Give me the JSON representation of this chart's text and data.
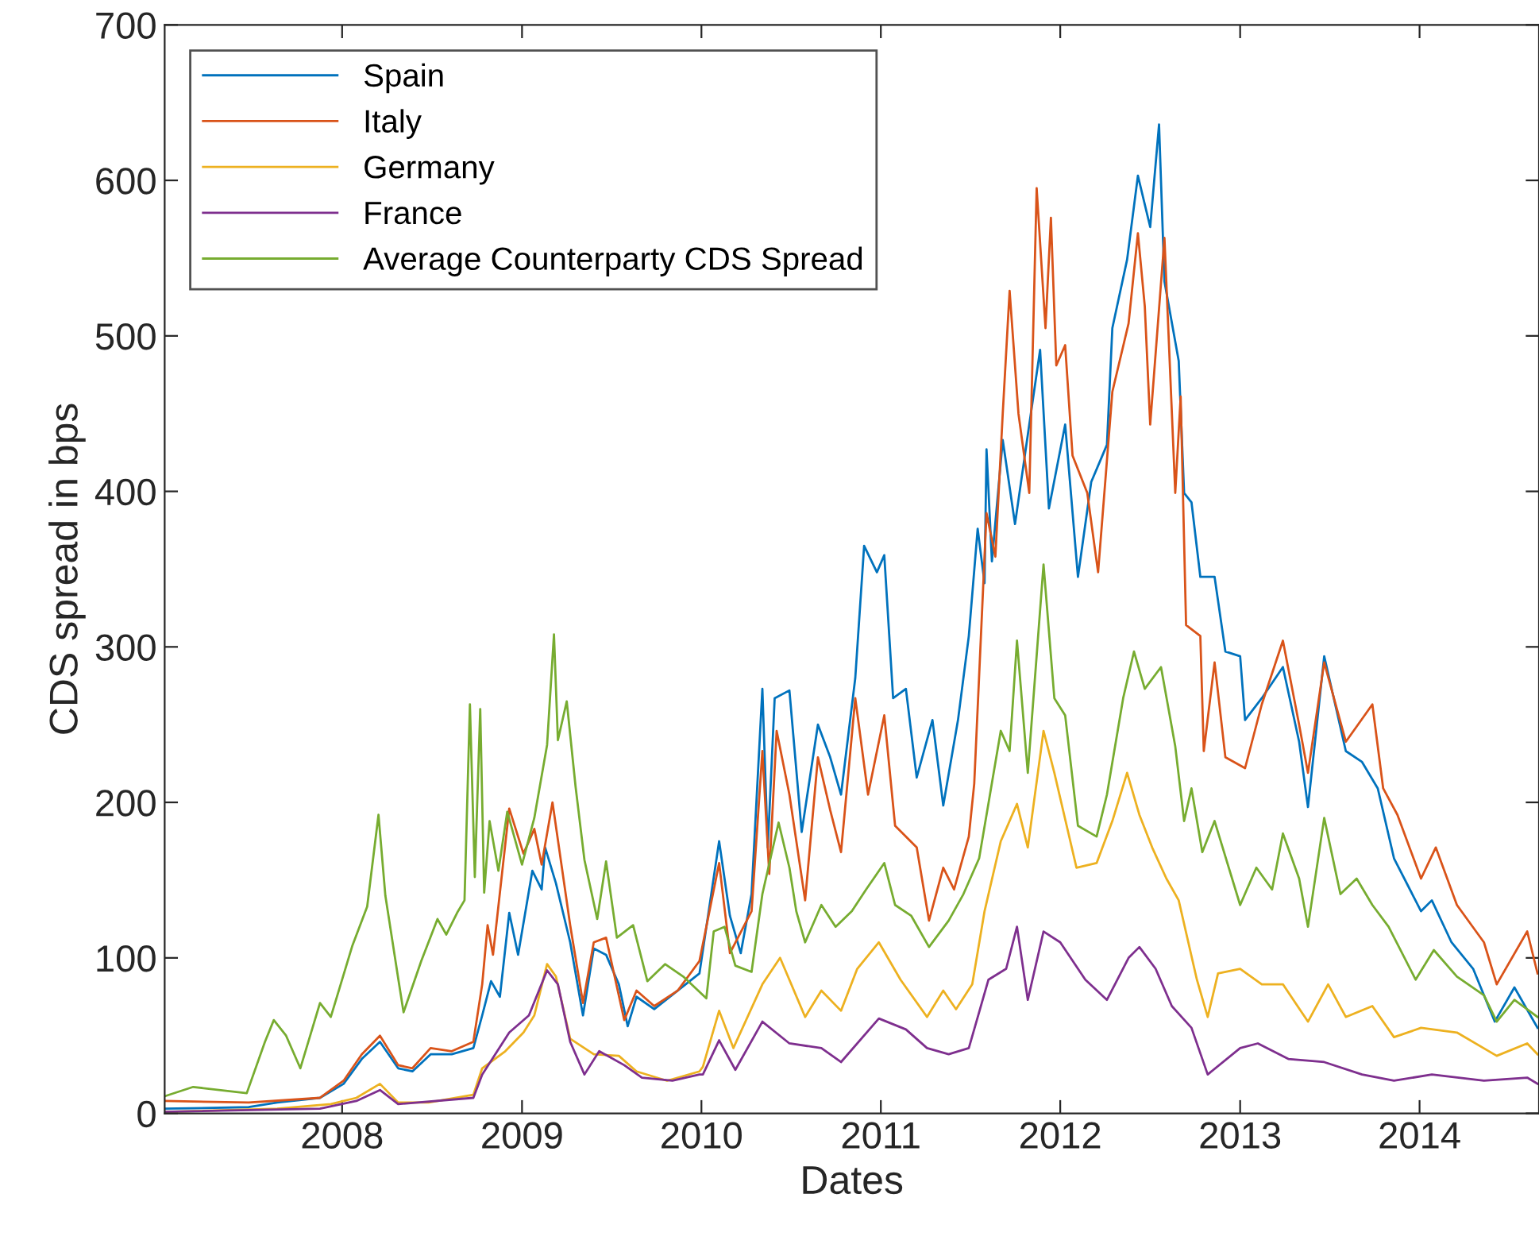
{
  "chart_data": {
    "type": "line",
    "xlabel": "Dates",
    "ylabel": "CDS spread in bps",
    "xlim": [
      "2007-01-05",
      "2014-09-01"
    ],
    "ylim": [
      0,
      700
    ],
    "yticks": [
      0,
      100,
      200,
      300,
      400,
      500,
      600,
      700
    ],
    "xticks": [
      {
        "value": "2008-01-01",
        "label": "2008"
      },
      {
        "value": "2009-01-01",
        "label": "2009"
      },
      {
        "value": "2010-01-01",
        "label": "2010"
      },
      {
        "value": "2011-01-01",
        "label": "2011"
      },
      {
        "value": "2012-01-01",
        "label": "2012"
      },
      {
        "value": "2013-01-01",
        "label": "2013"
      },
      {
        "value": "2014-01-01",
        "label": "2014"
      }
    ],
    "grid": false,
    "legend": "top left",
    "marker": "none",
    "line_style": "solid",
    "series": [
      {
        "name": "Spain",
        "color": "#0072bd",
        "x": [
          "2007-01-05",
          "2007-06-25",
          "2007-08-22",
          "2007-11-17",
          "2008-01-04",
          "2008-02-10",
          "2008-03-18",
          "2008-04-24",
          "2008-05-23",
          "2008-06-29",
          "2008-08-11",
          "2008-09-24",
          "2008-10-12",
          "2008-10-30",
          "2008-11-17",
          "2008-12-06",
          "2008-12-24",
          "2009-01-22",
          "2009-02-10",
          "2009-02-17",
          "2009-03-11",
          "2009-04-09",
          "2009-05-05",
          "2009-05-27",
          "2009-06-21",
          "2009-07-17",
          "2009-08-04",
          "2009-08-22",
          "2009-09-27",
          "2009-11-14",
          "2009-12-28",
          "2010-02-06",
          "2010-02-28",
          "2010-03-22",
          "2010-04-13",
          "2010-05-05",
          "2010-05-16",
          "2010-05-30",
          "2010-06-29",
          "2010-07-24",
          "2010-08-26",
          "2010-09-20",
          "2010-10-12",
          "2010-11-10",
          "2010-11-28",
          "2010-12-24",
          "2011-01-08",
          "2011-01-26",
          "2011-02-21",
          "2011-03-15",
          "2011-04-16",
          "2011-05-08",
          "2011-06-07",
          "2011-06-29",
          "2011-07-17",
          "2011-07-31",
          "2011-08-04",
          "2011-08-15",
          "2011-09-06",
          "2011-10-01",
          "2011-10-30",
          "2011-11-21",
          "2011-12-09",
          "2012-01-11",
          "2012-02-06",
          "2012-03-04",
          "2012-04-05",
          "2012-04-16",
          "2012-05-16",
          "2012-06-07",
          "2012-07-02",
          "2012-07-20",
          "2012-07-31",
          "2012-08-29",
          "2012-09-09",
          "2012-09-24",
          "2012-10-12",
          "2012-11-10",
          "2012-12-02",
          "2013-01-01",
          "2013-01-11",
          "2013-02-14",
          "2013-03-29",
          "2013-05-01",
          "2013-05-19",
          "2013-06-21",
          "2013-08-04",
          "2013-09-06",
          "2013-10-08",
          "2013-11-10",
          "2014-01-04",
          "2014-01-26",
          "2014-03-07",
          "2014-04-20",
          "2014-06-03",
          "2014-07-13",
          "2014-08-29"
        ],
        "values": [
          3,
          4,
          7,
          10,
          19,
          35,
          46,
          29,
          27,
          38,
          38,
          42,
          63,
          85,
          75,
          129,
          102,
          156,
          144,
          171,
          148,
          110,
          63,
          106,
          102,
          83,
          56,
          75,
          67,
          79,
          90,
          175,
          127,
          103,
          141,
          273,
          171,
          267,
          272,
          181,
          250,
          229,
          205,
          280,
          365,
          348,
          359,
          267,
          273,
          216,
          253,
          198,
          253,
          307,
          376,
          341,
          427,
          355,
          433,
          379,
          443,
          491,
          389,
          443,
          345,
          406,
          430,
          505,
          549,
          603,
          570,
          636,
          535,
          484,
          399,
          393,
          345,
          345,
          297,
          294,
          253,
          267,
          287,
          239,
          197,
          294,
          233,
          226,
          209,
          164,
          130,
          137,
          110,
          93,
          59,
          81,
          55
        ]
      },
      {
        "name": "Italy",
        "color": "#d95319",
        "x": [
          "2007-01-05",
          "2007-06-25",
          "2007-11-17",
          "2008-01-04",
          "2008-02-10",
          "2008-03-18",
          "2008-04-24",
          "2008-05-23",
          "2008-06-29",
          "2008-08-11",
          "2008-09-24",
          "2008-10-12",
          "2008-10-23",
          "2008-11-03",
          "2008-12-06",
          "2009-01-04",
          "2009-01-26",
          "2009-02-10",
          "2009-03-04",
          "2009-04-09",
          "2009-05-05",
          "2009-05-27",
          "2009-06-21",
          "2009-07-28",
          "2009-08-22",
          "2009-09-27",
          "2009-11-14",
          "2009-12-28",
          "2010-02-06",
          "2010-02-28",
          "2010-04-13",
          "2010-05-05",
          "2010-05-19",
          "2010-06-03",
          "2010-06-29",
          "2010-07-31",
          "2010-08-26",
          "2010-09-20",
          "2010-10-12",
          "2010-11-10",
          "2010-12-06",
          "2011-01-08",
          "2011-01-30",
          "2011-03-15",
          "2011-04-09",
          "2011-05-08",
          "2011-05-30",
          "2011-06-29",
          "2011-07-10",
          "2011-08-04",
          "2011-08-22",
          "2011-09-06",
          "2011-09-20",
          "2011-10-08",
          "2011-10-30",
          "2011-11-14",
          "2011-12-02",
          "2011-12-13",
          "2011-12-24",
          "2012-01-11",
          "2012-01-26",
          "2012-02-25",
          "2012-03-18",
          "2012-04-16",
          "2012-05-19",
          "2012-06-07",
          "2012-06-21",
          "2012-07-02",
          "2012-07-31",
          "2012-08-22",
          "2012-09-02",
          "2012-09-13",
          "2012-10-12",
          "2012-10-19",
          "2012-11-10",
          "2012-12-02",
          "2013-01-11",
          "2013-02-14",
          "2013-03-29",
          "2013-05-01",
          "2013-05-19",
          "2013-06-21",
          "2013-08-04",
          "2013-09-27",
          "2013-10-19",
          "2013-11-17",
          "2014-01-04",
          "2014-02-03",
          "2014-03-18",
          "2014-05-12",
          "2014-06-07",
          "2014-08-08",
          "2014-08-29"
        ],
        "values": [
          8,
          7,
          10,
          21,
          38,
          50,
          31,
          29,
          42,
          40,
          46,
          83,
          121,
          102,
          196,
          167,
          183,
          160,
          200,
          121,
          71,
          110,
          113,
          60,
          79,
          69,
          79,
          98,
          161,
          103,
          130,
          233,
          154,
          246,
          205,
          137,
          229,
          195,
          168,
          267,
          205,
          256,
          185,
          171,
          124,
          158,
          144,
          178,
          212,
          386,
          358,
          450,
          529,
          450,
          399,
          595,
          505,
          576,
          481,
          494,
          423,
          399,
          348,
          464,
          508,
          566,
          519,
          443,
          563,
          399,
          461,
          314,
          307,
          233,
          290,
          229,
          222,
          263,
          304,
          250,
          219,
          290,
          239,
          263,
          209,
          192,
          151,
          171,
          134,
          110,
          83,
          117,
          90
        ]
      },
      {
        "name": "Germany",
        "color": "#edb120",
        "x": [
          "2007-01-05",
          "2007-08-22",
          "2007-12-09",
          "2008-01-30",
          "2008-03-18",
          "2008-04-24",
          "2008-06-25",
          "2008-09-24",
          "2008-10-12",
          "2008-11-28",
          "2009-01-04",
          "2009-01-26",
          "2009-02-21",
          "2009-03-11",
          "2009-04-09",
          "2009-05-27",
          "2009-07-17",
          "2009-08-22",
          "2009-10-23",
          "2009-12-28",
          "2010-01-04",
          "2010-02-06",
          "2010-03-07",
          "2010-05-05",
          "2010-06-10",
          "2010-07-31",
          "2010-09-02",
          "2010-10-12",
          "2010-11-14",
          "2010-12-28",
          "2011-02-10",
          "2011-04-05",
          "2011-05-08",
          "2011-06-03",
          "2011-07-06",
          "2011-07-31",
          "2011-09-02",
          "2011-10-05",
          "2011-10-27",
          "2011-11-28",
          "2011-12-20",
          "2012-02-03",
          "2012-03-15",
          "2012-04-16",
          "2012-05-16",
          "2012-06-10",
          "2012-07-06",
          "2012-08-04",
          "2012-08-29",
          "2012-10-05",
          "2012-10-27",
          "2012-11-17",
          "2013-01-01",
          "2013-02-14",
          "2013-03-29",
          "2013-05-19",
          "2013-06-29",
          "2013-08-04",
          "2013-09-27",
          "2013-11-10",
          "2014-01-04",
          "2014-03-18",
          "2014-06-07",
          "2014-08-08",
          "2014-08-29"
        ],
        "values": [
          1,
          3,
          6,
          10,
          19,
          7,
          7,
          12,
          29,
          40,
          52,
          63,
          96,
          88,
          48,
          38,
          37,
          27,
          21,
          27,
          30,
          66,
          42,
          83,
          100,
          62,
          79,
          66,
          93,
          110,
          86,
          62,
          79,
          67,
          83,
          130,
          175,
          199,
          171,
          246,
          219,
          158,
          161,
          188,
          219,
          192,
          171,
          151,
          137,
          86,
          62,
          90,
          93,
          83,
          83,
          59,
          83,
          62,
          69,
          49,
          55,
          52,
          37,
          45,
          38
        ]
      },
      {
        "name": "France",
        "color": "#7e2f8e",
        "x": [
          "2007-01-05",
          "2007-11-17",
          "2008-01-30",
          "2008-03-18",
          "2008-04-24",
          "2008-09-24",
          "2008-10-12",
          "2008-12-06",
          "2009-01-15",
          "2009-02-21",
          "2009-03-15",
          "2009-04-09",
          "2009-05-08",
          "2009-06-07",
          "2009-07-28",
          "2009-09-02",
          "2009-11-03",
          "2009-12-28",
          "2010-01-04",
          "2010-02-06",
          "2010-03-11",
          "2010-05-05",
          "2010-06-29",
          "2010-09-02",
          "2010-10-12",
          "2010-12-28",
          "2011-02-21",
          "2011-04-05",
          "2011-05-19",
          "2011-06-29",
          "2011-08-08",
          "2011-09-13",
          "2011-10-05",
          "2011-10-27",
          "2011-11-28",
          "2012-01-01",
          "2012-02-21",
          "2012-04-05",
          "2012-05-19",
          "2012-06-10",
          "2012-07-13",
          "2012-08-15",
          "2012-09-24",
          "2012-10-27",
          "2013-01-01",
          "2013-02-06",
          "2013-04-09",
          "2013-06-21",
          "2013-09-06",
          "2013-11-10",
          "2014-01-26",
          "2014-05-12",
          "2014-08-08",
          "2014-08-29"
        ],
        "values": [
          1,
          3,
          8,
          15,
          6,
          10,
          25,
          52,
          63,
          92,
          83,
          46,
          25,
          40,
          31,
          23,
          21,
          25,
          25,
          47,
          28,
          59,
          45,
          42,
          33,
          61,
          54,
          42,
          38,
          42,
          86,
          93,
          120,
          73,
          117,
          110,
          86,
          73,
          100,
          107,
          93,
          69,
          55,
          25,
          42,
          45,
          35,
          33,
          25,
          21,
          25,
          21,
          23,
          19
        ]
      },
      {
        "name": "Average Counterparty CDS Spread",
        "color": "#77ac30",
        "x": [
          "2007-01-05",
          "2007-03-04",
          "2007-06-21",
          "2007-07-28",
          "2007-08-15",
          "2007-09-09",
          "2007-10-08",
          "2007-11-17",
          "2007-12-09",
          "2008-01-22",
          "2008-02-21",
          "2008-03-15",
          "2008-03-29",
          "2008-04-24",
          "2008-05-05",
          "2008-06-10",
          "2008-07-13",
          "2008-07-31",
          "2008-08-22",
          "2008-09-06",
          "2008-09-17",
          "2008-09-27",
          "2008-10-08",
          "2008-10-16",
          "2008-10-27",
          "2008-11-14",
          "2008-12-02",
          "2009-01-01",
          "2009-01-26",
          "2009-02-21",
          "2009-03-07",
          "2009-03-15",
          "2009-04-02",
          "2009-04-20",
          "2009-05-08",
          "2009-06-03",
          "2009-06-21",
          "2009-07-13",
          "2009-08-15",
          "2009-09-13",
          "2009-10-19",
          "2009-11-25",
          "2010-01-11",
          "2010-01-26",
          "2010-02-17",
          "2010-03-11",
          "2010-04-13",
          "2010-05-05",
          "2010-06-07",
          "2010-06-29",
          "2010-07-13",
          "2010-07-31",
          "2010-09-02",
          "2010-10-01",
          "2010-11-03",
          "2010-12-02",
          "2011-01-08",
          "2011-01-30",
          "2011-03-04",
          "2011-04-09",
          "2011-05-19",
          "2011-06-18",
          "2011-07-20",
          "2011-08-11",
          "2011-09-02",
          "2011-09-20",
          "2011-10-05",
          "2011-10-27",
          "2011-11-28",
          "2011-12-20",
          "2012-01-11",
          "2012-02-06",
          "2012-03-15",
          "2012-04-05",
          "2012-05-08",
          "2012-05-30",
          "2012-06-21",
          "2012-07-24",
          "2012-08-22",
          "2012-09-09",
          "2012-09-24",
          "2012-10-16",
          "2012-11-10",
          "2013-01-01",
          "2013-02-03",
          "2013-03-07",
          "2013-03-29",
          "2013-05-01",
          "2013-05-19",
          "2013-06-21",
          "2013-07-24",
          "2013-08-26",
          "2013-09-27",
          "2013-10-30",
          "2013-12-24",
          "2014-01-30",
          "2014-03-18",
          "2014-05-12",
          "2014-06-07",
          "2014-07-13",
          "2014-08-29"
        ],
        "values": [
          11,
          17,
          13,
          46,
          60,
          50,
          29,
          71,
          62,
          108,
          133,
          192,
          140,
          87,
          65,
          98,
          125,
          115,
          129,
          137,
          263,
          152,
          260,
          142,
          188,
          156,
          194,
          160,
          190,
          237,
          308,
          240,
          265,
          210,
          163,
          125,
          162,
          113,
          121,
          85,
          96,
          88,
          74,
          117,
          120,
          95,
          91,
          141,
          187,
          158,
          130,
          110,
          134,
          120,
          130,
          144,
          161,
          134,
          127,
          107,
          124,
          141,
          164,
          205,
          246,
          233,
          304,
          219,
          353,
          267,
          256,
          185,
          178,
          205,
          267,
          297,
          273,
          287,
          236,
          188,
          209,
          168,
          188,
          134,
          158,
          144,
          180,
          151,
          120,
          190,
          141,
          151,
          134,
          120,
          86,
          105,
          88,
          76,
          59,
          73,
          62
        ]
      }
    ]
  }
}
